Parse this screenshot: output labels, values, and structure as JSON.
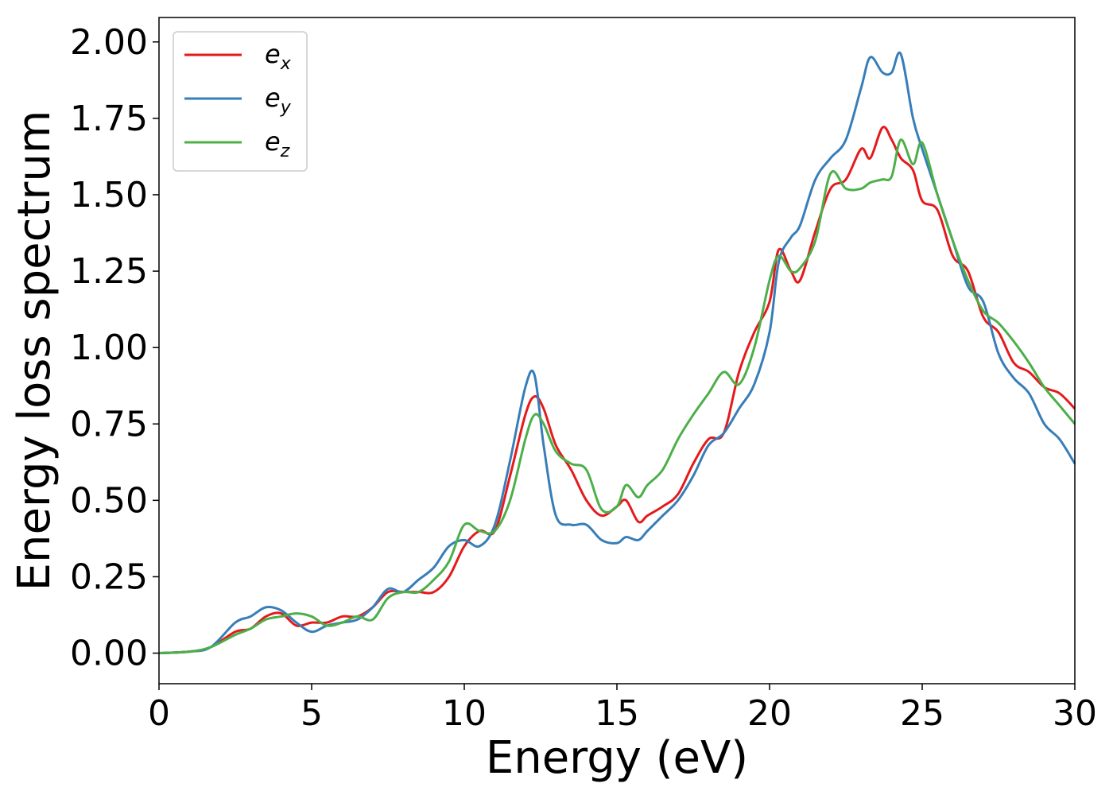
{
  "chart_data": {
    "type": "line",
    "xlabel": "Energy (eV)",
    "ylabel": "Energy loss spectrum",
    "xlim": [
      0,
      30
    ],
    "ylim": [
      -0.1,
      2.08
    ],
    "grid": false,
    "legend_placement": "top-left",
    "x_ticks": [
      "0",
      "5",
      "10",
      "15",
      "20",
      "25",
      "30"
    ],
    "y_ticks": [
      "0.00",
      "0.25",
      "0.50",
      "0.75",
      "1.00",
      "1.25",
      "1.50",
      "1.75",
      "2.00"
    ],
    "series": [
      {
        "name": "e",
        "subscript": "x",
        "color": "#e41a1c",
        "x": [
          0,
          1.0,
          1.7,
          2.5,
          3.0,
          3.5,
          4.0,
          4.5,
          5.0,
          5.5,
          6.0,
          6.5,
          7.0,
          7.5,
          8.0,
          8.5,
          9.0,
          9.5,
          10.0,
          10.5,
          11.0,
          11.5,
          12.0,
          12.3,
          12.6,
          13.0,
          13.5,
          14.0,
          14.5,
          15.0,
          15.3,
          15.7,
          16.0,
          16.5,
          17.0,
          17.5,
          18.0,
          18.5,
          19.0,
          19.5,
          20.0,
          20.3,
          20.7,
          21.0,
          21.5,
          22.0,
          22.5,
          23.0,
          23.3,
          23.7,
          24.0,
          24.3,
          24.7,
          25.0,
          25.5,
          26.0,
          26.5,
          27.0,
          27.5,
          28.0,
          28.5,
          29.0,
          29.5,
          30.0
        ],
        "values": [
          0.0,
          0.005,
          0.02,
          0.07,
          0.08,
          0.12,
          0.13,
          0.09,
          0.1,
          0.1,
          0.12,
          0.12,
          0.15,
          0.2,
          0.2,
          0.2,
          0.2,
          0.25,
          0.35,
          0.4,
          0.4,
          0.58,
          0.78,
          0.84,
          0.8,
          0.68,
          0.6,
          0.5,
          0.45,
          0.48,
          0.5,
          0.43,
          0.45,
          0.48,
          0.52,
          0.62,
          0.7,
          0.72,
          0.92,
          1.05,
          1.15,
          1.32,
          1.25,
          1.22,
          1.38,
          1.52,
          1.55,
          1.65,
          1.62,
          1.72,
          1.68,
          1.62,
          1.58,
          1.48,
          1.45,
          1.3,
          1.25,
          1.1,
          1.05,
          0.95,
          0.92,
          0.87,
          0.85,
          0.8
        ]
      },
      {
        "name": "e",
        "subscript": "y",
        "color": "#377eb8",
        "x": [
          0,
          1.0,
          1.7,
          2.5,
          3.0,
          3.5,
          4.0,
          4.5,
          5.0,
          5.5,
          6.0,
          6.5,
          7.0,
          7.5,
          8.0,
          8.5,
          9.0,
          9.5,
          10.0,
          10.5,
          11.0,
          11.5,
          12.0,
          12.3,
          12.6,
          13.0,
          13.5,
          14.0,
          14.5,
          15.0,
          15.3,
          15.7,
          16.0,
          16.5,
          17.0,
          17.5,
          18.0,
          18.5,
          19.0,
          19.5,
          20.0,
          20.3,
          20.7,
          21.0,
          21.5,
          22.0,
          22.5,
          23.0,
          23.3,
          23.7,
          24.0,
          24.3,
          24.7,
          25.0,
          25.5,
          26.0,
          26.5,
          27.0,
          27.5,
          28.0,
          28.5,
          29.0,
          29.5,
          30.0
        ],
        "values": [
          0.0,
          0.005,
          0.02,
          0.1,
          0.12,
          0.15,
          0.14,
          0.1,
          0.07,
          0.09,
          0.1,
          0.11,
          0.15,
          0.21,
          0.2,
          0.24,
          0.28,
          0.35,
          0.37,
          0.35,
          0.42,
          0.63,
          0.87,
          0.91,
          0.68,
          0.45,
          0.42,
          0.42,
          0.37,
          0.36,
          0.38,
          0.37,
          0.4,
          0.45,
          0.5,
          0.58,
          0.68,
          0.72,
          0.8,
          0.88,
          1.05,
          1.28,
          1.36,
          1.4,
          1.55,
          1.62,
          1.68,
          1.85,
          1.95,
          1.9,
          1.9,
          1.96,
          1.75,
          1.65,
          1.5,
          1.35,
          1.2,
          1.15,
          0.98,
          0.9,
          0.85,
          0.75,
          0.7,
          0.62
        ]
      },
      {
        "name": "e",
        "subscript": "z",
        "color": "#4daf4a",
        "x": [
          0,
          1.0,
          1.7,
          2.5,
          3.0,
          3.5,
          4.0,
          4.5,
          5.0,
          5.5,
          6.0,
          6.5,
          7.0,
          7.5,
          8.0,
          8.5,
          9.0,
          9.5,
          10.0,
          10.5,
          11.0,
          11.5,
          12.0,
          12.3,
          12.6,
          13.0,
          13.5,
          14.0,
          14.5,
          15.0,
          15.3,
          15.7,
          16.0,
          16.5,
          17.0,
          17.5,
          18.0,
          18.5,
          19.0,
          19.5,
          20.0,
          20.3,
          20.7,
          21.0,
          21.5,
          22.0,
          22.5,
          23.0,
          23.3,
          23.7,
          24.0,
          24.3,
          24.7,
          25.0,
          25.5,
          26.0,
          26.5,
          27.0,
          27.5,
          28.0,
          28.5,
          29.0,
          29.5,
          30.0
        ],
        "values": [
          0.0,
          0.005,
          0.02,
          0.06,
          0.08,
          0.11,
          0.12,
          0.13,
          0.12,
          0.09,
          0.1,
          0.12,
          0.11,
          0.18,
          0.2,
          0.2,
          0.24,
          0.3,
          0.42,
          0.4,
          0.4,
          0.5,
          0.7,
          0.78,
          0.75,
          0.66,
          0.62,
          0.6,
          0.47,
          0.48,
          0.55,
          0.51,
          0.55,
          0.6,
          0.7,
          0.78,
          0.85,
          0.92,
          0.88,
          1.0,
          1.22,
          1.3,
          1.25,
          1.26,
          1.35,
          1.57,
          1.52,
          1.52,
          1.54,
          1.55,
          1.56,
          1.68,
          1.6,
          1.67,
          1.5,
          1.35,
          1.22,
          1.12,
          1.08,
          1.02,
          0.95,
          0.87,
          0.81,
          0.75
        ]
      }
    ]
  }
}
